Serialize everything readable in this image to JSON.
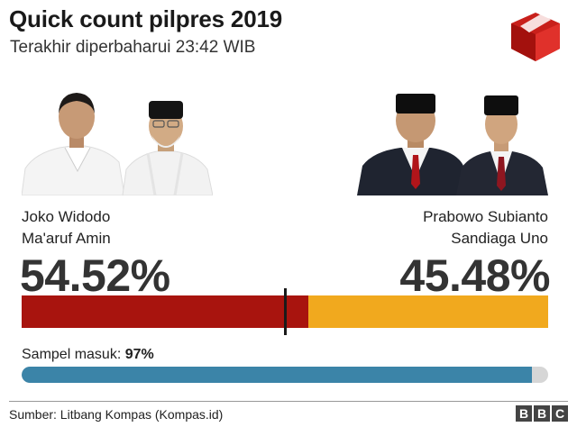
{
  "header": {
    "title": "Quick count pilpres 2019",
    "subtitle": "Terakhir diperbaharui 23:42 WIB"
  },
  "candidates": {
    "left": {
      "name1": "Joko Widodo",
      "name2": "Ma'aruf Amin",
      "percent_text": "54.52%",
      "percent": 54.52,
      "color": "#a8140e"
    },
    "right": {
      "name1": "Prabowo Subianto",
      "name2": "Sandiaga Uno",
      "percent_text": "45.48%",
      "percent": 45.48,
      "color": "#f1a91e"
    }
  },
  "sample": {
    "label": "Sampel masuk:",
    "value_text": "97%",
    "value": 97,
    "color": "#3b84a8"
  },
  "footer": {
    "source": "Sumber: Litbang Kompas (Kompas.id)",
    "brand": [
      "B",
      "B",
      "C"
    ]
  },
  "icons": {
    "logo": "ballot-box-icon",
    "brand": "bbc-logo"
  }
}
